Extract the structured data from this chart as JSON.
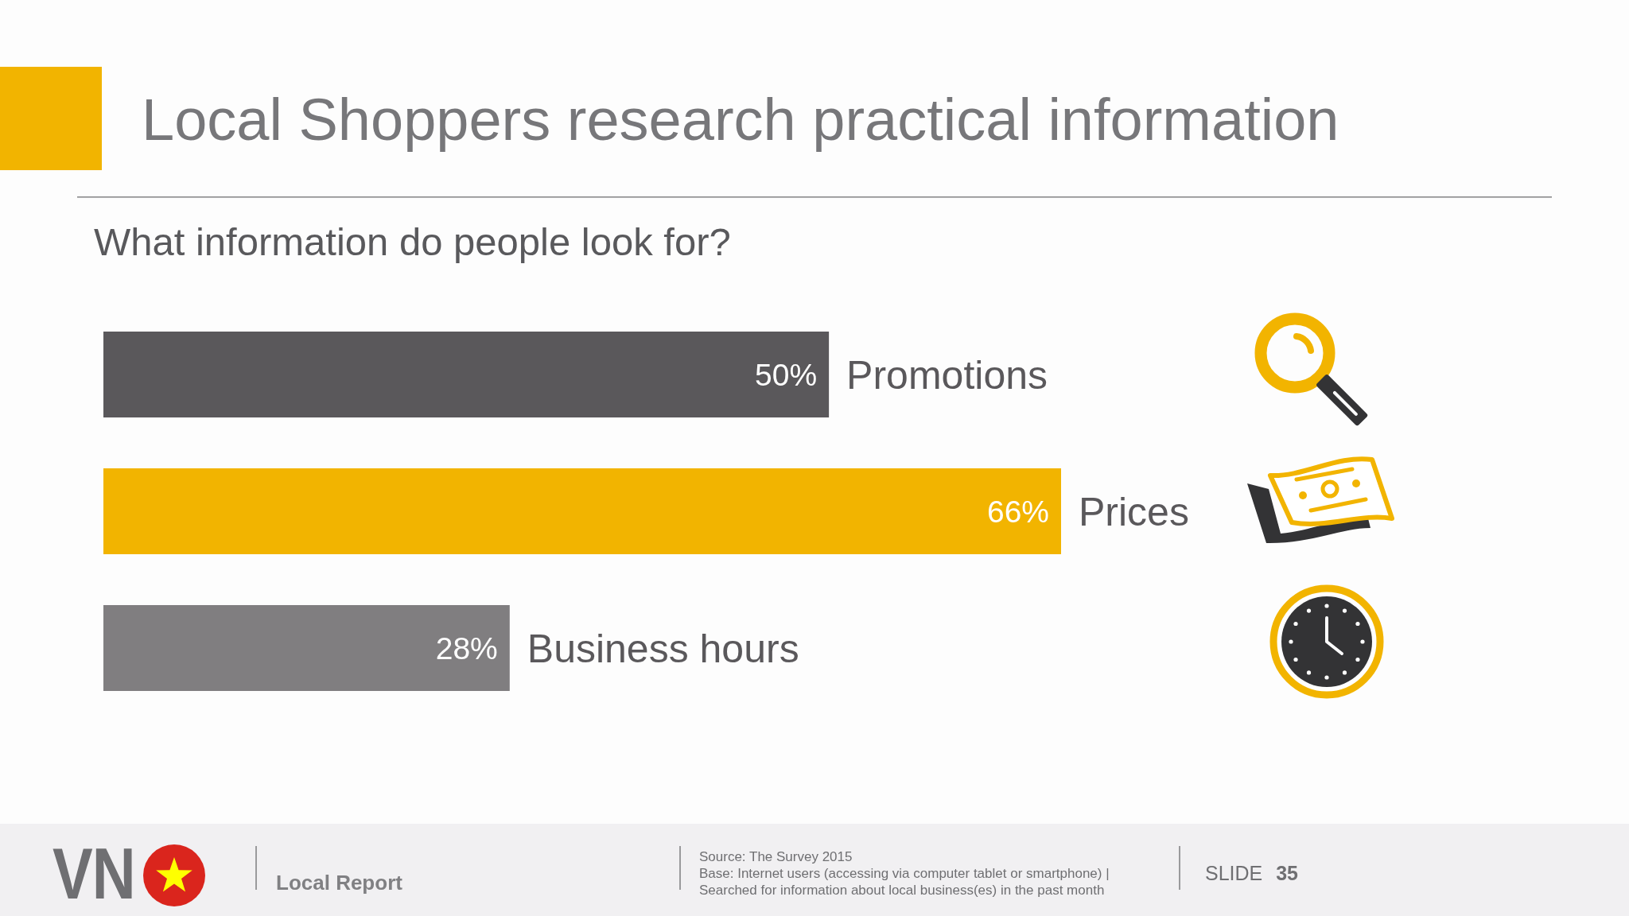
{
  "chart_data": {
    "type": "bar",
    "orientation": "horizontal",
    "title": "Local Shoppers research practical information",
    "subtitle": "What information do people look for?",
    "categories": [
      "Promotions",
      "Prices",
      "Business hours"
    ],
    "values": [
      50,
      66,
      28
    ],
    "colors": [
      "#5a585b",
      "#f2b400",
      "#807e80"
    ],
    "value_labels": [
      "50%",
      "66%",
      "28%"
    ],
    "annotations": [
      "VN",
      "Local Report",
      "Source: The Survey 2015",
      "Base: Internet users (accessing via computer tablet or smartphone) |",
      "Searched for information about local business(es) in the past month",
      "SLIDE 35"
    ]
  }
}
